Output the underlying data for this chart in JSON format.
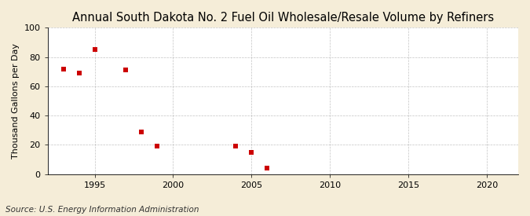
{
  "title": "Annual South Dakota No. 2 Fuel Oil Wholesale/Resale Volume by Refiners",
  "ylabel": "Thousand Gallons per Day",
  "source": "Source: U.S. Energy Information Administration",
  "x_data": [
    1993,
    1994,
    1995,
    1997,
    1998,
    1999,
    2004,
    2005,
    2006
  ],
  "y_data": [
    72,
    69,
    85,
    71,
    29,
    19,
    19,
    15,
    4
  ],
  "marker_color": "#cc0000",
  "marker_style": "s",
  "marker_size": 4,
  "xlim": [
    1992,
    2022
  ],
  "ylim": [
    0,
    100
  ],
  "xticks": [
    1995,
    2000,
    2005,
    2010,
    2015,
    2020
  ],
  "yticks": [
    0,
    20,
    40,
    60,
    80,
    100
  ],
  "fig_background_color": "#f5edd8",
  "plot_background_color": "#ffffff",
  "grid_color": "#aaaaaa",
  "title_fontsize": 10.5,
  "label_fontsize": 8,
  "tick_fontsize": 8,
  "source_fontsize": 7.5
}
